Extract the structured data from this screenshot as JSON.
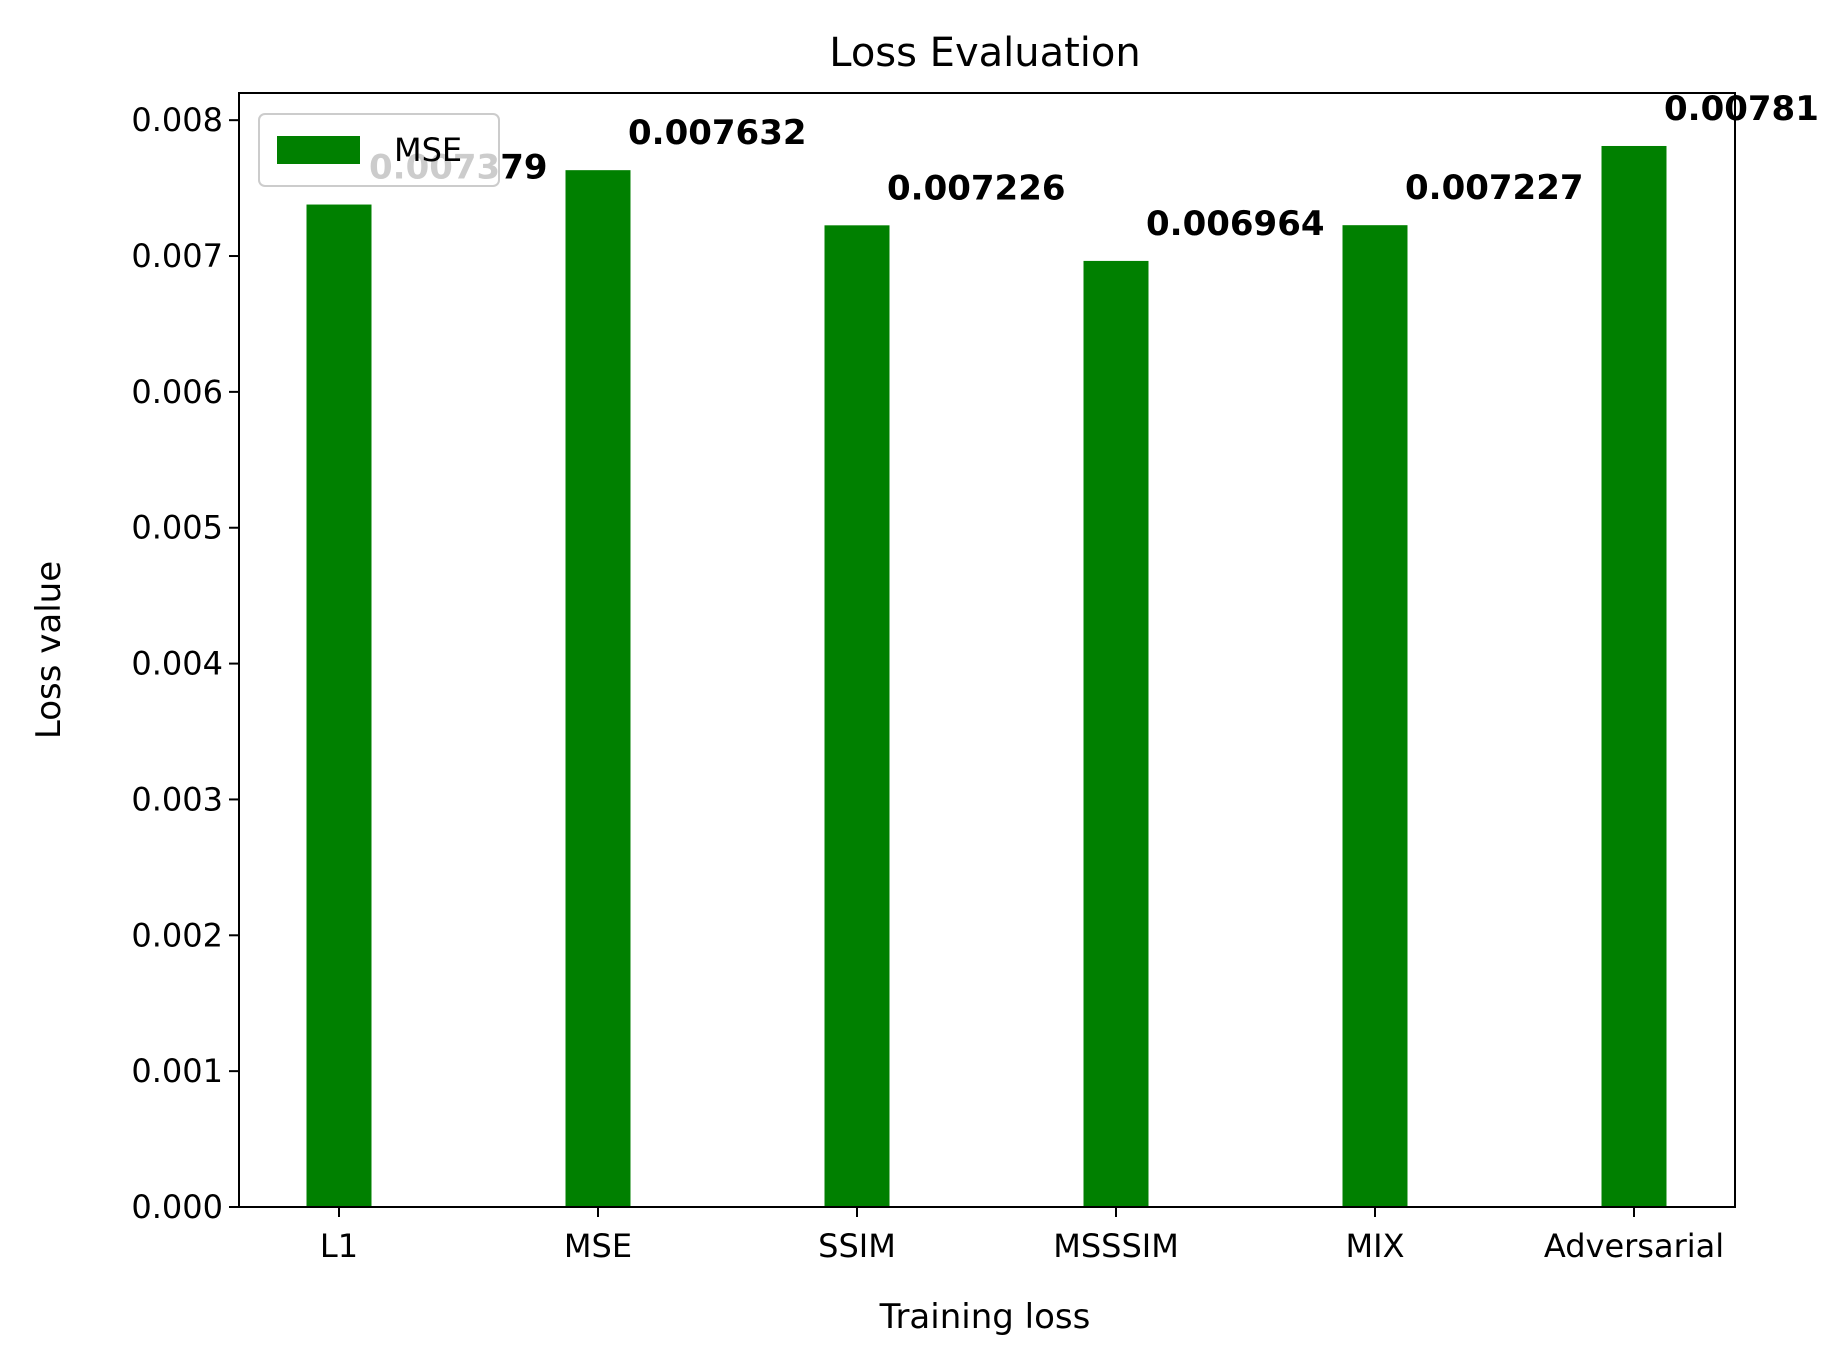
{
  "chart_data": {
    "type": "bar",
    "title": "Loss Evaluation",
    "xlabel": "Training loss",
    "ylabel": "Loss value",
    "categories": [
      "L1",
      "MSE",
      "SSIM",
      "MSSSIM",
      "MIX",
      "Adversarial"
    ],
    "series": [
      {
        "name": "MSE",
        "color": "#008000",
        "values": [
          0.007379,
          0.007632,
          0.007226,
          0.006964,
          0.007227,
          0.00781
        ],
        "labels": [
          "0.007379",
          "0.007632",
          "0.007226",
          "0.006964",
          "0.007227",
          "0.00781"
        ]
      }
    ],
    "ylim": [
      0,
      0.0082
    ],
    "yticks": [
      0,
      0.001,
      0.002,
      0.003,
      0.004,
      0.005,
      0.006,
      0.007,
      0.008
    ],
    "ytick_labels": [
      "0.000",
      "0.001",
      "0.002",
      "0.003",
      "0.004",
      "0.005",
      "0.006",
      "0.007",
      "0.008"
    ],
    "grid": false,
    "legend": "upper-left"
  }
}
